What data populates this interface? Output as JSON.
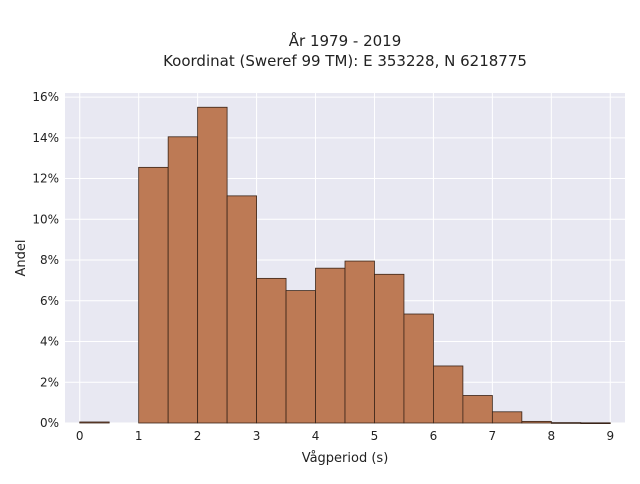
{
  "chart_data": {
    "type": "bar",
    "title": "År 1979 - 2019",
    "subtitle": "Koordinat (Sweref 99 TM): E 353228, N 6218775",
    "xlabel": "Vågperiod (s)",
    "ylabel": "Andel",
    "bin_width": 0.5,
    "bins": [
      {
        "start": 0.0,
        "value": 0.05
      },
      {
        "start": 0.5,
        "value": 0.0
      },
      {
        "start": 1.0,
        "value": 12.55
      },
      {
        "start": 1.5,
        "value": 14.05
      },
      {
        "start": 2.0,
        "value": 15.5
      },
      {
        "start": 2.5,
        "value": 11.15
      },
      {
        "start": 3.0,
        "value": 7.1
      },
      {
        "start": 3.5,
        "value": 6.5
      },
      {
        "start": 4.0,
        "value": 7.6
      },
      {
        "start": 4.5,
        "value": 7.95
      },
      {
        "start": 5.0,
        "value": 7.3
      },
      {
        "start": 5.5,
        "value": 5.35
      },
      {
        "start": 6.0,
        "value": 2.8
      },
      {
        "start": 6.5,
        "value": 1.35
      },
      {
        "start": 7.0,
        "value": 0.55
      },
      {
        "start": 7.5,
        "value": 0.08
      },
      {
        "start": 8.0,
        "value": 0.02
      },
      {
        "start": 8.5,
        "value": 0.01
      }
    ],
    "xlim": [
      -0.25,
      9.25
    ],
    "ylim": [
      0,
      16.2
    ],
    "xticks": [
      0,
      1,
      2,
      3,
      4,
      5,
      6,
      7,
      8,
      9
    ],
    "xtick_labels": [
      "0",
      "1",
      "2",
      "3",
      "4",
      "5",
      "6",
      "7",
      "8",
      "9"
    ],
    "yticks": [
      0,
      2,
      4,
      6,
      8,
      10,
      12,
      14,
      16
    ],
    "ytick_labels": [
      "0%",
      "2%",
      "4%",
      "6%",
      "8%",
      "10%",
      "12%",
      "14%",
      "16%"
    ],
    "grid": true,
    "colors": {
      "bar_fill": "#bd7a55",
      "bar_edge": "#3a2418",
      "plot_bg": "#e8e8f2",
      "grid": "#ffffff"
    }
  }
}
